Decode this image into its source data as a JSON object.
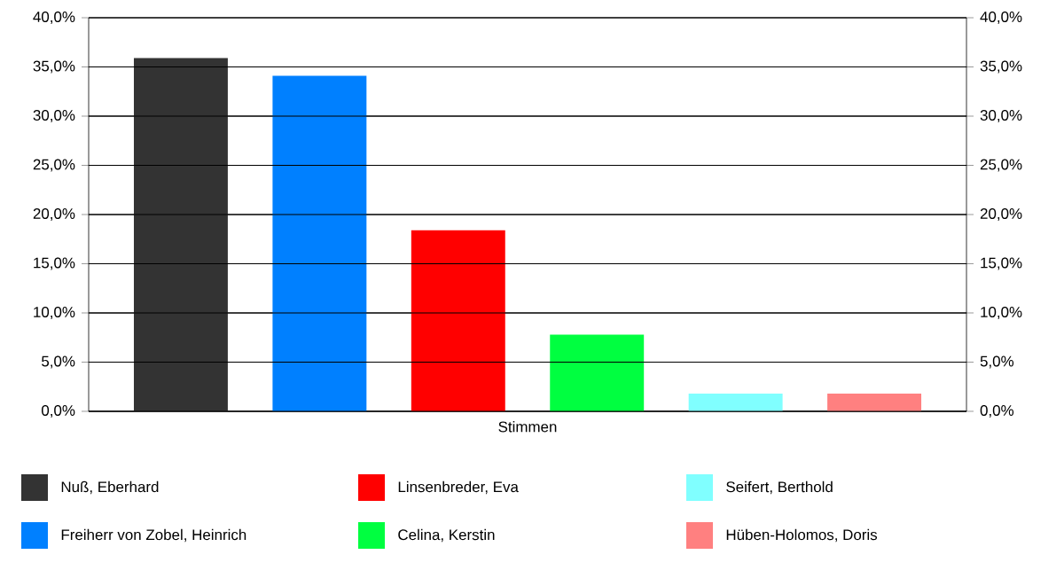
{
  "chart_data": {
    "type": "bar",
    "categories": [
      "Stimmen"
    ],
    "series": [
      {
        "name": "Nuß, Eberhard",
        "color": "#333333",
        "values": [
          35.9
        ]
      },
      {
        "name": "Freiherr von Zobel, Heinrich",
        "color": "#0080ff",
        "values": [
          34.1
        ]
      },
      {
        "name": "Linsenbreder, Eva",
        "color": "#ff0000",
        "values": [
          18.4
        ]
      },
      {
        "name": "Celina, Kerstin",
        "color": "#00ff40",
        "values": [
          7.8
        ]
      },
      {
        "name": "Seifert, Berthold",
        "color": "#80ffff",
        "values": [
          1.8
        ]
      },
      {
        "name": "Hüben-Holomos, Doris",
        "color": "#ff8080",
        "values": [
          1.8
        ]
      }
    ],
    "ylim": [
      0,
      40
    ],
    "yticks": [
      {
        "value": 0,
        "label": "0,0%"
      },
      {
        "value": 5,
        "label": "5,0%"
      },
      {
        "value": 10,
        "label": "10,0%"
      },
      {
        "value": 15,
        "label": "15,0%"
      },
      {
        "value": 20,
        "label": "20,0%"
      },
      {
        "value": 25,
        "label": "25,0%"
      },
      {
        "value": 30,
        "label": "30,0%"
      },
      {
        "value": 35,
        "label": "35,0%"
      },
      {
        "value": 40,
        "label": "40,0%"
      }
    ],
    "grid": "y",
    "legend": "bottom"
  }
}
